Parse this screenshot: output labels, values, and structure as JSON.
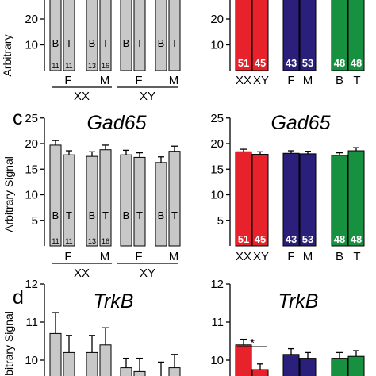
{
  "colors": {
    "gray_bar": "#c8c8c8",
    "XX": "#e8222a",
    "XY": "#e8222a",
    "F": "#2a1f7a",
    "M": "#2a1f7a",
    "B": "#17913f",
    "T": "#17913f"
  },
  "chart_data": [
    {
      "type": "bar",
      "panel": "b-left (partial, top cropped)",
      "ylabel": "Arbitrary",
      "yticks": [
        10,
        20
      ],
      "categories": [
        "XX F B",
        "XX F T",
        "XX M B",
        "XX M T",
        "XY F B",
        "XY F T",
        "XY M B",
        "XY M T"
      ],
      "bar_letters": [
        "B",
        "T",
        "B",
        "T",
        "B",
        "T",
        "B",
        "T"
      ],
      "n_labels": [
        "11",
        "11",
        "13",
        "16",
        "",
        "",
        "",
        ""
      ],
      "group_labels_top": [
        "F",
        "M",
        "F",
        "M"
      ],
      "group_labels_bottom": [
        "XX",
        "XY"
      ],
      "note": "bar tops cropped above view"
    },
    {
      "type": "bar",
      "panel": "b-right (partial, top cropped)",
      "yticks": [
        10,
        20
      ],
      "categories": [
        "XX",
        "XY",
        "F",
        "M",
        "B",
        "T"
      ],
      "n_labels": [
        "51",
        "45",
        "43",
        "53",
        "48",
        "48"
      ]
    },
    {
      "type": "bar",
      "panel_letter": "c",
      "title": "Gad65",
      "ylabel": "Arbitrary Signal",
      "ylim": [
        0,
        25
      ],
      "yticks": [
        5,
        10,
        15,
        20,
        25
      ],
      "categories": [
        "XX F B",
        "XX F T",
        "XX M B",
        "XX M T",
        "XY F B",
        "XY F T",
        "XY M B",
        "XY M T"
      ],
      "values": [
        19.7,
        17.8,
        17.5,
        18.8,
        17.8,
        17.3,
        16.3,
        18.5
      ],
      "errors": [
        0.9,
        0.8,
        0.9,
        0.9,
        0.9,
        0.9,
        1.1,
        1.0
      ],
      "bar_letters": [
        "B",
        "T",
        "B",
        "T",
        "B",
        "T",
        "B",
        "T"
      ],
      "n_labels": [
        "11",
        "11",
        "13",
        "16",
        "",
        "",
        "",
        ""
      ],
      "group_labels_top": [
        "F",
        "M",
        "F",
        "M"
      ],
      "group_labels_bottom": [
        "XX",
        "XY"
      ]
    },
    {
      "type": "bar",
      "title": "Gad65",
      "ylim": [
        0,
        25
      ],
      "yticks": [
        5,
        10,
        15,
        20,
        25
      ],
      "categories": [
        "XX",
        "XY",
        "F",
        "M",
        "B",
        "T"
      ],
      "values": [
        18.4,
        17.9,
        18.1,
        18.0,
        17.7,
        18.6
      ],
      "errors": [
        0.5,
        0.5,
        0.5,
        0.5,
        0.5,
        0.6
      ],
      "n_labels": [
        "51",
        "45",
        "43",
        "53",
        "48",
        "48"
      ]
    },
    {
      "type": "bar",
      "panel_letter": "d",
      "title": "TrkB",
      "ylabel": "Arbitrary Signal",
      "ylim": [
        9.5,
        12
      ],
      "yticks": [
        10,
        11,
        12
      ],
      "categories": [
        "XX F B",
        "XX F T",
        "XX M B",
        "XX M T",
        "XY F B",
        "XY F T",
        "XY M B",
        "XY M T"
      ],
      "values": [
        10.7,
        10.2,
        10.2,
        10.4,
        9.8,
        9.7,
        9.5,
        9.8
      ],
      "errors": [
        0.55,
        0.45,
        0.45,
        0.45,
        0.25,
        0.35,
        0.45,
        0.35
      ]
    },
    {
      "type": "bar",
      "title": "TrkB",
      "ylim": [
        9.5,
        12
      ],
      "yticks": [
        10,
        11,
        12
      ],
      "categories": [
        "XX",
        "XY",
        "F",
        "M",
        "B",
        "T"
      ],
      "values": [
        10.4,
        9.75,
        10.15,
        10.05,
        10.05,
        10.1
      ],
      "errors": [
        0.15,
        0.15,
        0.15,
        0.15,
        0.15,
        0.15
      ],
      "annotation": "*"
    }
  ]
}
